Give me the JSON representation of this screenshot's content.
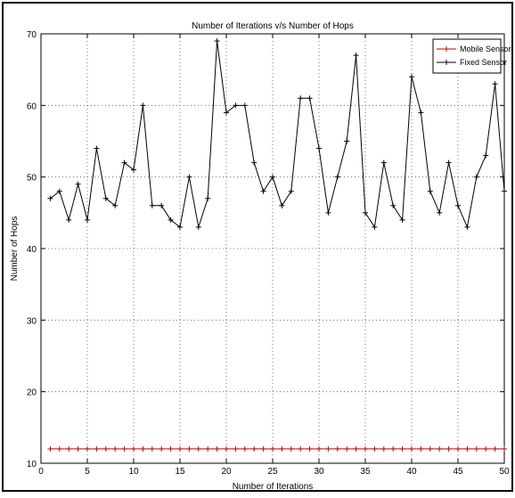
{
  "chart_data": {
    "type": "line",
    "title": "Number of Iterations v/s Number of Hops",
    "xlabel": "Number of Iterations",
    "ylabel": "Number of Hops",
    "xlim": [
      0,
      50
    ],
    "ylim": [
      10,
      70
    ],
    "xticks": [
      0,
      5,
      10,
      15,
      20,
      25,
      30,
      35,
      40,
      45,
      50
    ],
    "yticks": [
      10,
      20,
      30,
      40,
      50,
      60,
      70
    ],
    "grid": true,
    "legend_position": "top-right",
    "x": [
      1,
      2,
      3,
      4,
      5,
      6,
      7,
      8,
      9,
      10,
      11,
      12,
      13,
      14,
      15,
      16,
      17,
      18,
      19,
      20,
      21,
      22,
      23,
      24,
      25,
      26,
      27,
      28,
      29,
      30,
      31,
      32,
      33,
      34,
      35,
      36,
      37,
      38,
      39,
      40,
      41,
      42,
      43,
      44,
      45,
      46,
      47,
      48,
      49,
      50
    ],
    "series": [
      {
        "name": "Mobile Sensor",
        "color": "#cc0000",
        "marker": "plus",
        "values": [
          12,
          12,
          12,
          12,
          12,
          12,
          12,
          12,
          12,
          12,
          12,
          12,
          12,
          12,
          12,
          12,
          12,
          12,
          12,
          12,
          12,
          12,
          12,
          12,
          12,
          12,
          12,
          12,
          12,
          12,
          12,
          12,
          12,
          12,
          12,
          12,
          12,
          12,
          12,
          12,
          12,
          12,
          12,
          12,
          12,
          12,
          12,
          12,
          12,
          12
        ]
      },
      {
        "name": "Fixed Sensor",
        "color": "#000000",
        "marker": "plus",
        "values": [
          47,
          48,
          44,
          49,
          44,
          54,
          47,
          46,
          52,
          51,
          60,
          46,
          46,
          44,
          43,
          50,
          43,
          47,
          69,
          59,
          60,
          60,
          52,
          48,
          50,
          46,
          48,
          61,
          61,
          54,
          45,
          50,
          55,
          67,
          45,
          43,
          52,
          46,
          44,
          64,
          59,
          48,
          45,
          52,
          46,
          43,
          50,
          53,
          63,
          48
        ]
      }
    ]
  }
}
